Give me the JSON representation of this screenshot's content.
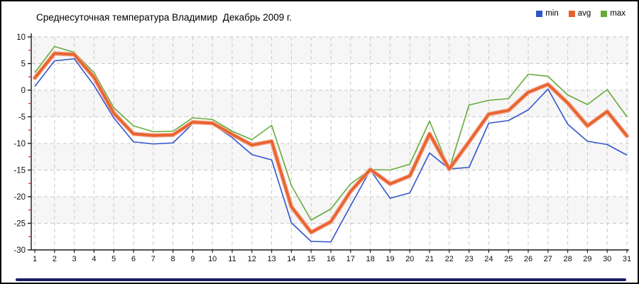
{
  "title": "Среднесуточная температура Владимир  Декабрь 2009 г.",
  "legend": {
    "position": "top-right",
    "items": [
      "min",
      "avg",
      "max"
    ]
  },
  "colors": {
    "min": "#3355CC",
    "avg": "#E8622D",
    "avg_halo": "#F2A287",
    "max": "#66AB3A",
    "band": "#F6F6F6",
    "grid": "#C9C9C9",
    "axis": "#1A1A1A",
    "tick_label": "#111111",
    "minor_tick": "#CC2222",
    "bottom_bar": "#1C1C66"
  },
  "chart_data": {
    "type": "line",
    "title": "Среднесуточная температура Владимир  Декабрь 2009 г.",
    "xlabel": "",
    "ylabel": "",
    "x": [
      1,
      2,
      3,
      4,
      5,
      6,
      7,
      8,
      9,
      10,
      11,
      12,
      13,
      14,
      15,
      16,
      17,
      18,
      19,
      20,
      21,
      22,
      23,
      24,
      25,
      26,
      27,
      28,
      29,
      30,
      31
    ],
    "ylim": [
      -30,
      10
    ],
    "yticks": [
      10,
      5,
      0,
      -5,
      -10,
      -15,
      -20,
      -25,
      -30
    ],
    "grid": true,
    "legend_position": "top-right",
    "series": [
      {
        "name": "min",
        "color": "#3355CC",
        "values": [
          0.7,
          5.5,
          5.9,
          0.9,
          -5.2,
          -9.7,
          -10.1,
          -9.9,
          -6.3,
          -6.4,
          -8.9,
          -12.1,
          -13.1,
          -24.9,
          -28.4,
          -28.5,
          -21.7,
          -15.0,
          -20.3,
          -19.3,
          -11.8,
          -14.8,
          -14.5,
          -6.2,
          -5.7,
          -3.7,
          0.2,
          -6.4,
          -9.6,
          -10.2,
          -12.2
        ]
      },
      {
        "name": "avg",
        "color": "#E8622D",
        "values": [
          2.3,
          6.9,
          6.7,
          2.4,
          -4.3,
          -8.2,
          -8.5,
          -8.4,
          -6.0,
          -6.2,
          -8.3,
          -10.3,
          -9.6,
          -21.9,
          -26.7,
          -24.7,
          -19.0,
          -14.9,
          -17.6,
          -16.1,
          -8.2,
          -14.8,
          -9.7,
          -4.5,
          -3.8,
          -0.4,
          1.1,
          -2.4,
          -6.7,
          -4.0,
          -8.6
        ]
      },
      {
        "name": "max",
        "color": "#66AB3A",
        "values": [
          3.3,
          8.2,
          7.1,
          3.3,
          -3.3,
          -6.7,
          -7.8,
          -7.7,
          -5.2,
          -5.5,
          -7.7,
          -9.3,
          -6.6,
          -17.9,
          -24.4,
          -22.3,
          -17.6,
          -14.9,
          -15.0,
          -13.9,
          -5.8,
          -14.8,
          -2.8,
          -1.9,
          -1.6,
          3.0,
          2.6,
          -0.9,
          -2.7,
          0.1,
          -5.0
        ]
      }
    ]
  }
}
